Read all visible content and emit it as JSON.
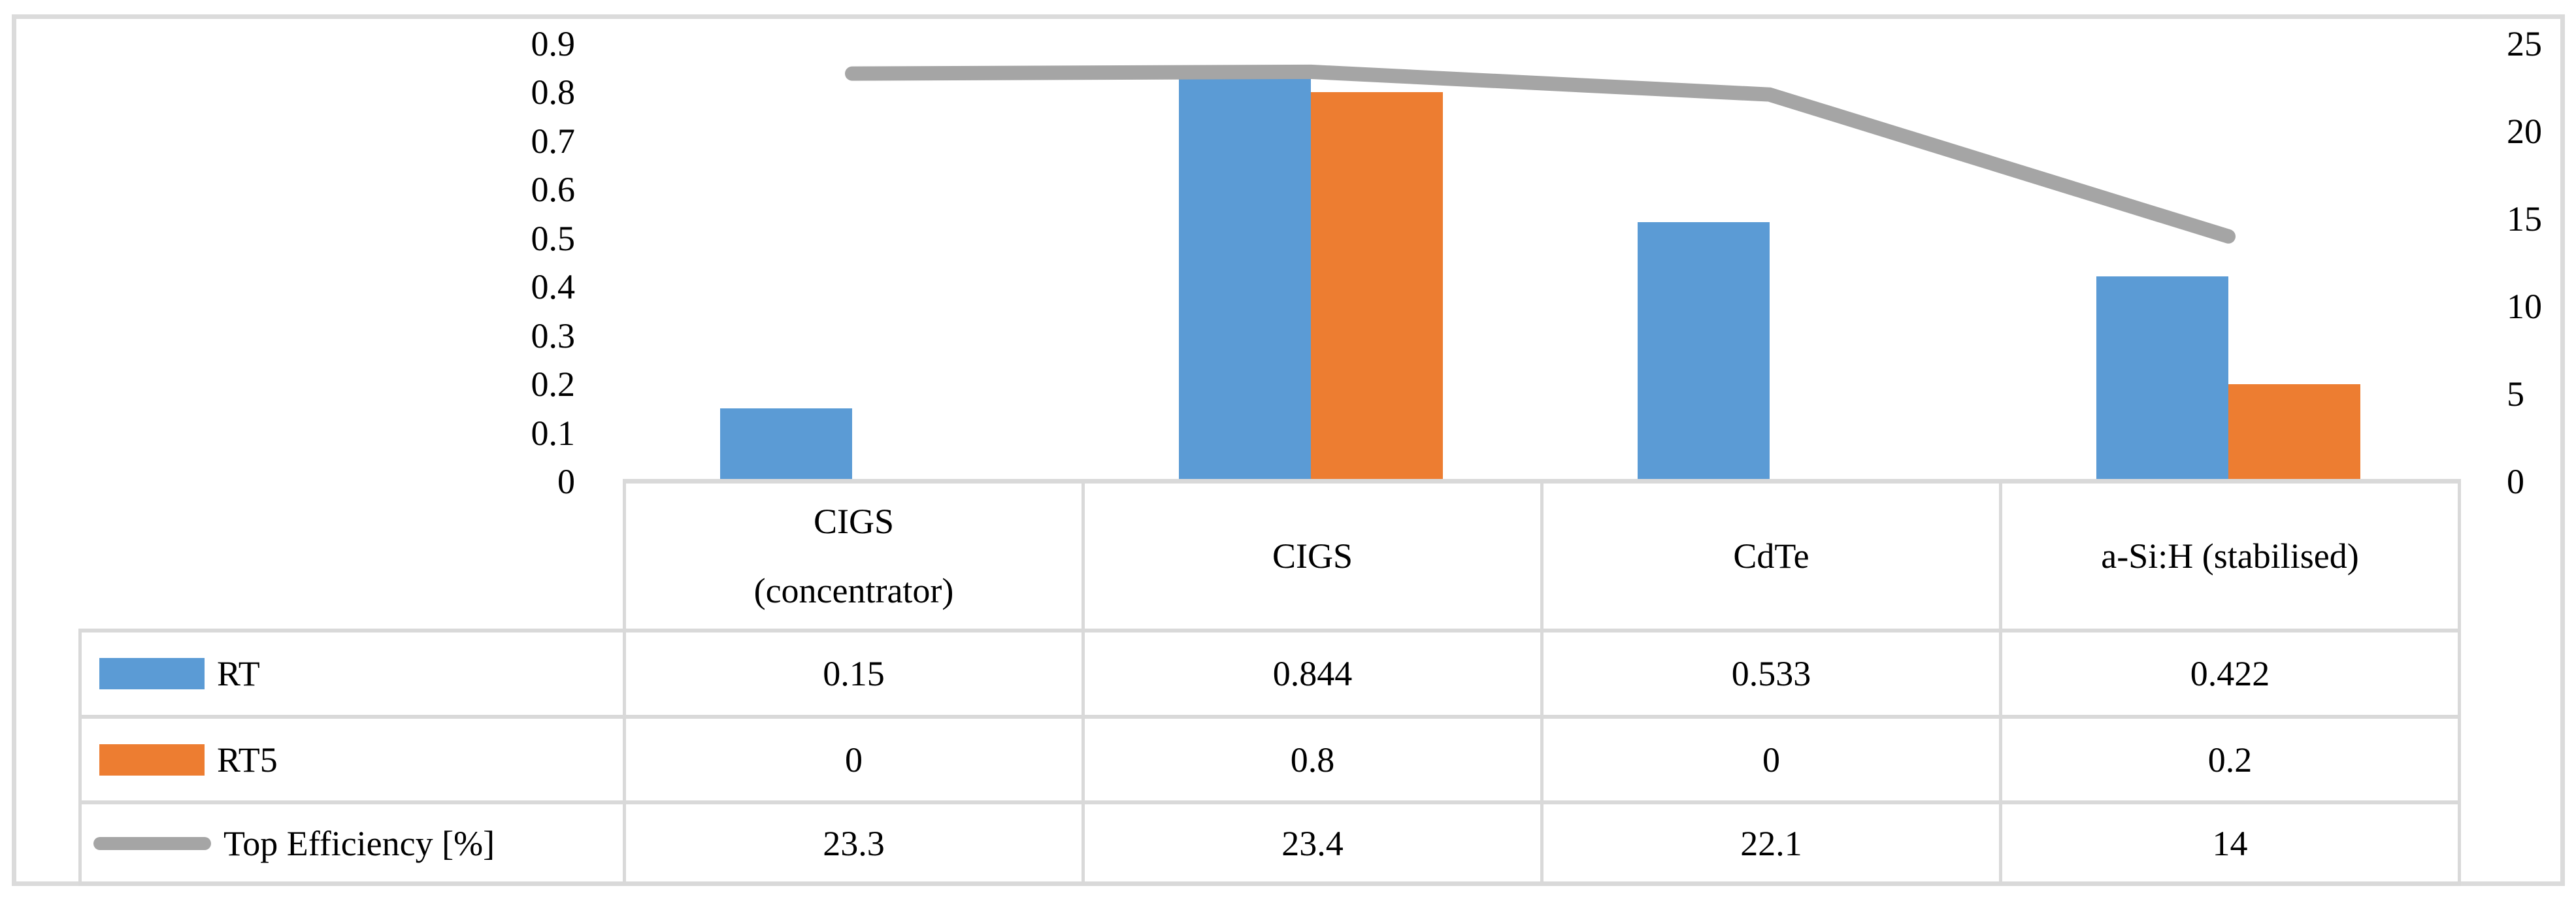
{
  "chart_data": {
    "type": "bar+line",
    "categories": [
      "CIGS (concentrator)",
      "CIGS",
      "CdTe",
      "a-Si:H (stabilised)"
    ],
    "category_lines": [
      [
        "CIGS",
        "(concentrator)"
      ],
      [
        "CIGS"
      ],
      [
        "CdTe"
      ],
      [
        "a-Si:H (stabilised)"
      ]
    ],
    "series": [
      {
        "name": "RT",
        "type": "bar",
        "axis": "left",
        "color": "#5B9BD5",
        "values": [
          0.15,
          0.844,
          0.533,
          0.422
        ],
        "display_values": [
          "0.15",
          "0.844",
          "0.533",
          "0.422"
        ]
      },
      {
        "name": "RT5",
        "type": "bar",
        "axis": "left",
        "color": "#ED7D31",
        "values": [
          0,
          0.8,
          0,
          0.2
        ],
        "display_values": [
          "0",
          "0.8",
          "0",
          "0.2"
        ]
      },
      {
        "name": "Top Efficiency [%]",
        "type": "line",
        "axis": "right",
        "color": "#A5A5A5",
        "values": [
          23.3,
          23.4,
          22.1,
          14
        ],
        "display_values": [
          "23.3",
          "23.4",
          "22.1",
          "14"
        ]
      }
    ],
    "left_axis": {
      "min": 0,
      "max": 0.9,
      "ticks": [
        "0.9",
        "0.8",
        "0.7",
        "0.6",
        "0.5",
        "0.4",
        "0.3",
        "0.2",
        "0.1",
        "0"
      ]
    },
    "right_axis": {
      "min": 0,
      "max": 25,
      "ticks": [
        "25",
        "20",
        "15",
        "10",
        "5",
        "0"
      ]
    },
    "grid": false,
    "legend_position": "data-table-left",
    "title": "",
    "xlabel": "",
    "ylabel": ""
  },
  "colors": {
    "bar_rt": "#5B9BD5",
    "bar_rt5": "#ED7D31",
    "line_top_efficiency": "#A5A5A5",
    "table_border": "#D9D9D9",
    "outer_border": "#DBDBDB",
    "text": "#000000",
    "background": "#FFFFFF"
  }
}
